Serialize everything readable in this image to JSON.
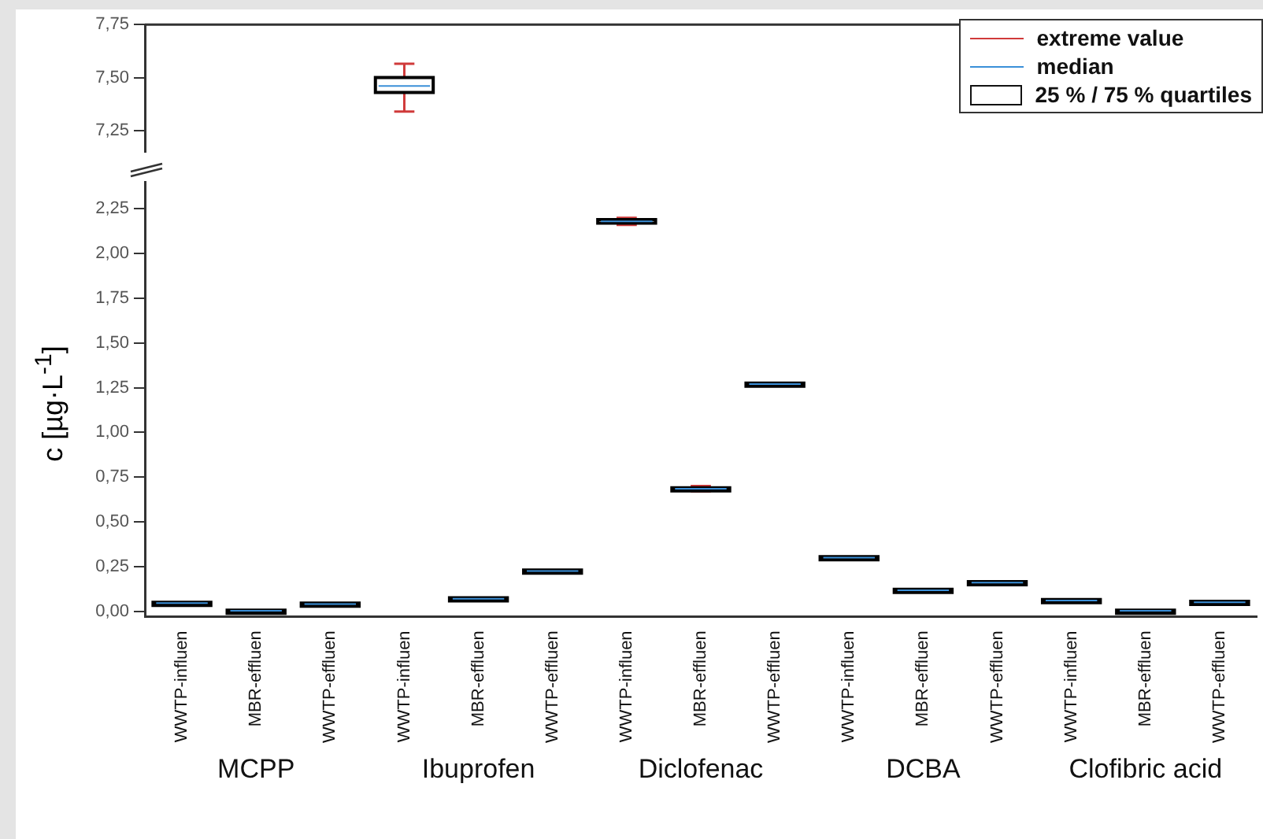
{
  "chart_data": [
    {
      "type": "box",
      "categories": [
        null,
        null,
        null,
        null,
        null,
        null,
        null,
        null,
        null,
        null,
        null,
        null,
        null,
        null,
        null
      ],
      "boxes": [
        null,
        null,
        null,
        {
          "low": 7.34,
          "q1": 7.43,
          "median": 7.46,
          "q3": 7.5,
          "high": 7.565
        },
        null,
        null,
        null,
        null,
        null,
        null,
        null,
        null,
        null,
        null,
        null
      ],
      "color": "#000000",
      "ylim": [
        7.15,
        7.75
      ],
      "yticks": [
        {
          "value": 7.25,
          "label": "7,25"
        },
        {
          "value": 7.5,
          "label": "7,50"
        },
        {
          "value": 7.75,
          "label": "7,75"
        }
      ],
      "tick_labels": "y",
      "annotations": [
        "extreme value",
        "median",
        "25 % / 75 % quartiles"
      ]
    },
    {
      "type": "box",
      "categories": [
        "WWTP-influen",
        "MBR-effluen",
        "WWTP-effluen",
        "WWTP-influen",
        "MBR-effluen",
        "WWTP-effluen",
        "WWTP-influen",
        "MBR-effluen",
        "WWTP-effluen",
        "WWTP-influen",
        "MBR-effluen",
        "WWTP-effluen",
        "WWTP-influen",
        "MBR-effluen",
        "WWTP-effluen"
      ],
      "boxes": [
        {
          "low": 0.04,
          "q1": 0.04,
          "median": 0.045,
          "q3": 0.05,
          "high": 0.05
        },
        {
          "low": 0.0,
          "q1": 0.0,
          "median": 0.003,
          "q3": 0.006,
          "high": 0.006
        },
        {
          "low": 0.035,
          "q1": 0.035,
          "median": 0.04,
          "q3": 0.045,
          "high": 0.045
        },
        null,
        {
          "low": 0.065,
          "q1": 0.065,
          "median": 0.07,
          "q3": 0.075,
          "high": 0.075
        },
        {
          "low": 0.22,
          "q1": 0.22,
          "median": 0.225,
          "q3": 0.23,
          "high": 0.23
        },
        {
          "low": 2.16,
          "q1": 2.17,
          "median": 2.18,
          "q3": 2.19,
          "high": 2.2
        },
        {
          "low": 0.67,
          "q1": 0.68,
          "median": 0.685,
          "q3": 0.69,
          "high": 0.7
        },
        {
          "low": 1.265,
          "q1": 1.265,
          "median": 1.27,
          "q3": 1.275,
          "high": 1.275
        },
        {
          "low": 0.295,
          "q1": 0.295,
          "median": 0.3,
          "q3": 0.305,
          "high": 0.305
        },
        {
          "low": 0.112,
          "q1": 0.112,
          "median": 0.117,
          "q3": 0.122,
          "high": 0.122
        },
        {
          "low": 0.155,
          "q1": 0.155,
          "median": 0.16,
          "q3": 0.165,
          "high": 0.165
        },
        {
          "low": 0.055,
          "q1": 0.055,
          "median": 0.06,
          "q3": 0.065,
          "high": 0.065
        },
        {
          "low": 0.0,
          "q1": 0.0,
          "median": 0.003,
          "q3": 0.006,
          "high": 0.006
        },
        {
          "low": 0.045,
          "q1": 0.045,
          "median": 0.05,
          "q3": 0.055,
          "high": 0.055
        }
      ],
      "color": "#000000",
      "ylim": [
        -0.03,
        2.4
      ],
      "yticks": [
        {
          "value": 0,
          "label": "0,00"
        },
        {
          "value": 0.25,
          "label": "0,25"
        },
        {
          "value": 0.5,
          "label": "0,50"
        },
        {
          "value": 0.75,
          "label": "0,75"
        },
        {
          "value": 1,
          "label": "1,00"
        },
        {
          "value": 1.25,
          "label": "1,25"
        },
        {
          "value": 1.5,
          "label": "1,50"
        },
        {
          "value": 1.75,
          "label": "1,75"
        },
        {
          "value": 2,
          "label": "2,00"
        },
        {
          "value": 2.25,
          "label": "2,25"
        }
      ],
      "ylabel": "c [µg·L$^{-1}$]",
      "annotations": [
        "MCPP",
        "Ibuprofen",
        "Diclofenac",
        "DCBA",
        "Clofibric acid"
      ]
    }
  ]
}
